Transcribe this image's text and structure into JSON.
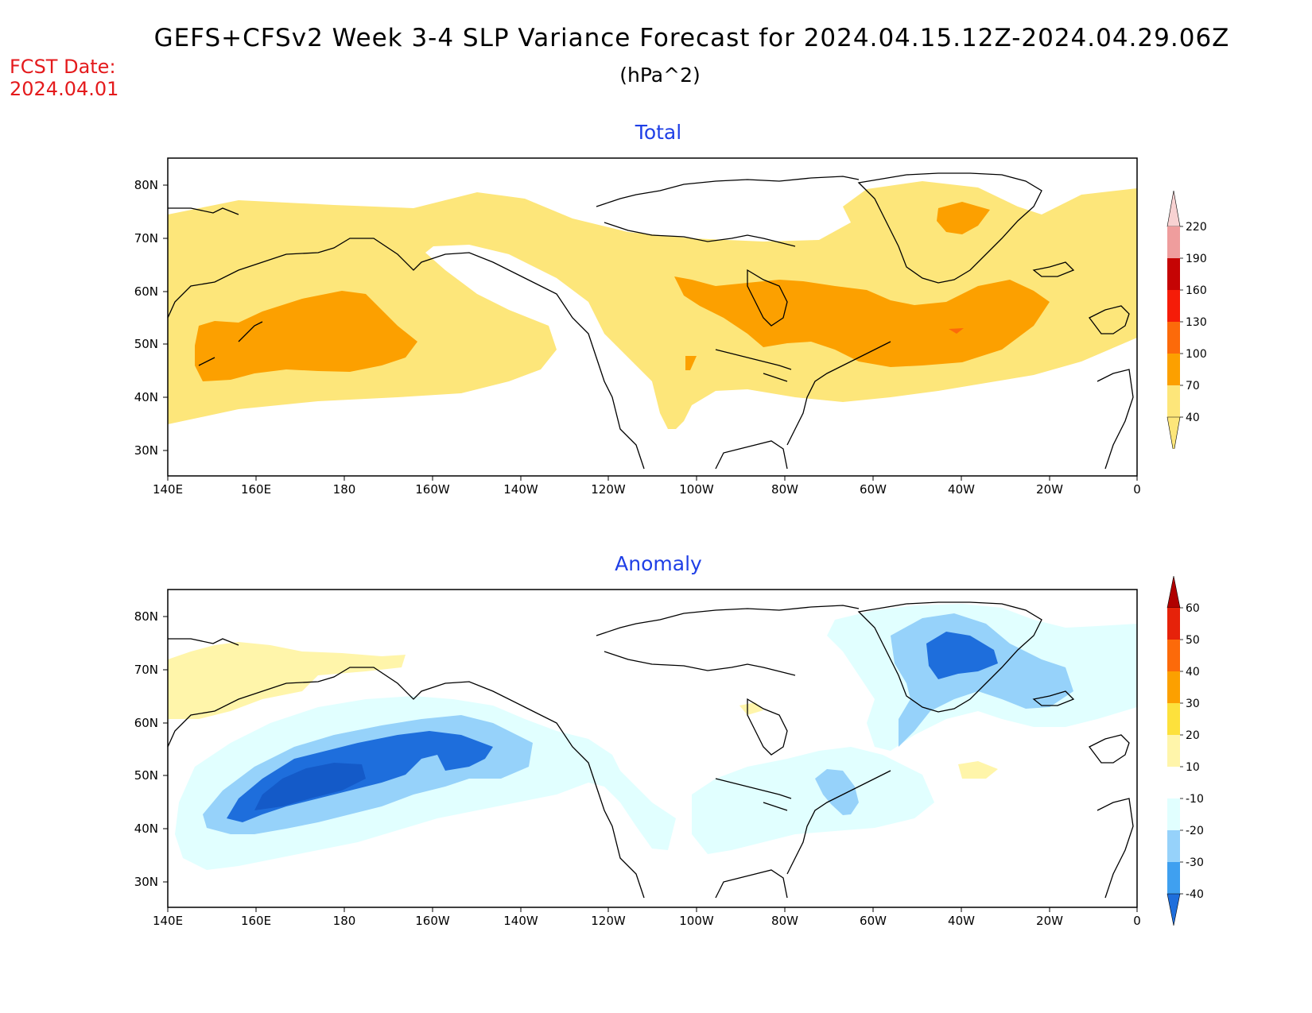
{
  "header": {
    "title": "GEFS+CFSv2 Week 3-4 SLP Variance Forecast for 2024.04.15.12Z-2024.04.29.06Z",
    "units": "(hPa^2)",
    "fcst_date_label": "FCST Date:",
    "fcst_date_value": "2024.04.01"
  },
  "map_axes": {
    "lon_ticks": [
      "140E",
      "160E",
      "180",
      "160W",
      "140W",
      "120W",
      "100W",
      "80W",
      "60W",
      "40W",
      "20W",
      "0"
    ],
    "lat_ticks": [
      "30N",
      "40N",
      "50N",
      "60N",
      "70N",
      "80N"
    ]
  },
  "panels": {
    "total": {
      "title": "Total",
      "colorbar": {
        "levels": [
          "40",
          "70",
          "100",
          "130",
          "160",
          "190",
          "220"
        ],
        "colors": [
          "#fde67a",
          "#fca000",
          "#fc6a0a",
          "#f51c08",
          "#c50404",
          "#ef9d9d",
          "#f8d2d2"
        ]
      }
    },
    "anomaly": {
      "title": "Anomaly",
      "colorbar": {
        "levels": [
          "-40",
          "-30",
          "-20",
          "-10",
          "10",
          "20",
          "30",
          "40",
          "50",
          "60"
        ],
        "colors": [
          "#1e6edc",
          "#3fa0f0",
          "#96d2fa",
          "#e1ffff",
          "#ffffff",
          "#fff5aa",
          "#fde13c",
          "#fca000",
          "#fc6a0a",
          "#e6220a",
          "#b00000"
        ]
      }
    }
  }
}
